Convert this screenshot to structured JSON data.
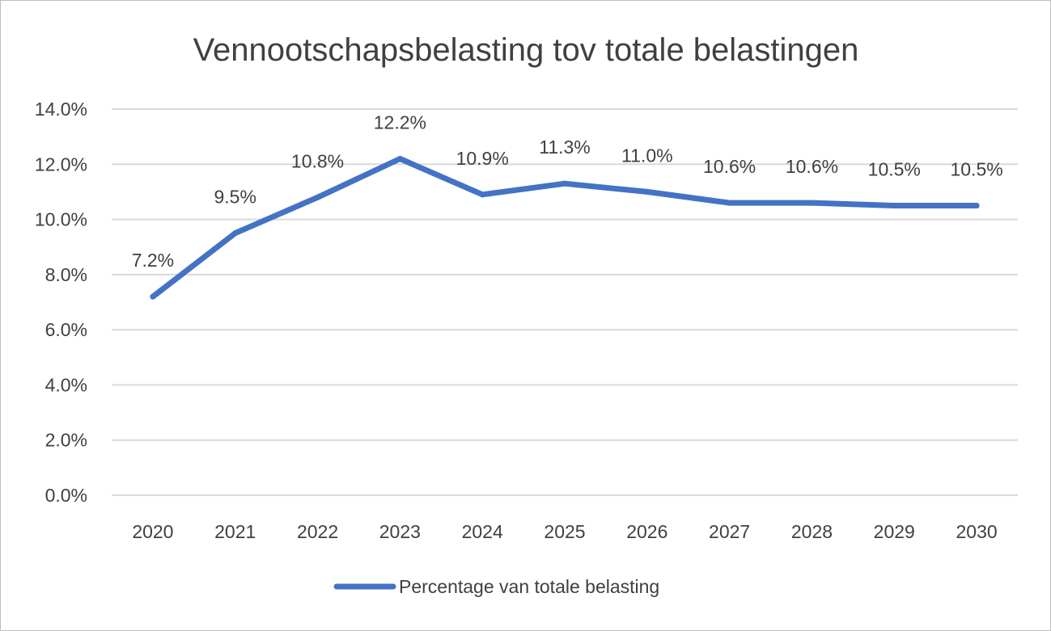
{
  "chart_data": {
    "type": "line",
    "title": "Vennootschapsbelasting tov totale belastingen",
    "categories": [
      "2020",
      "2021",
      "2022",
      "2023",
      "2024",
      "2025",
      "2026",
      "2027",
      "2028",
      "2029",
      "2030"
    ],
    "series": [
      {
        "name": "Percentage van totale belasting",
        "values": [
          7.2,
          9.5,
          10.8,
          12.2,
          10.9,
          11.3,
          11.0,
          10.6,
          10.6,
          10.5,
          10.5
        ],
        "data_labels": [
          "7.2%",
          "9.5%",
          "10.8%",
          "12.2%",
          "10.9%",
          "11.3%",
          "11.0%",
          "10.6%",
          "10.6%",
          "10.5%",
          "10.5%"
        ],
        "color": "#4472c4"
      }
    ],
    "y_ticks": [
      0,
      2,
      4,
      6,
      8,
      10,
      12,
      14
    ],
    "y_tick_labels": [
      "0.0%",
      "2.0%",
      "4.0%",
      "6.0%",
      "8.0%",
      "10.0%",
      "12.0%",
      "14.0%"
    ],
    "ylim": [
      0,
      14
    ],
    "xlabel": "",
    "ylabel": "",
    "grid": true,
    "legend_position": "bottom"
  }
}
